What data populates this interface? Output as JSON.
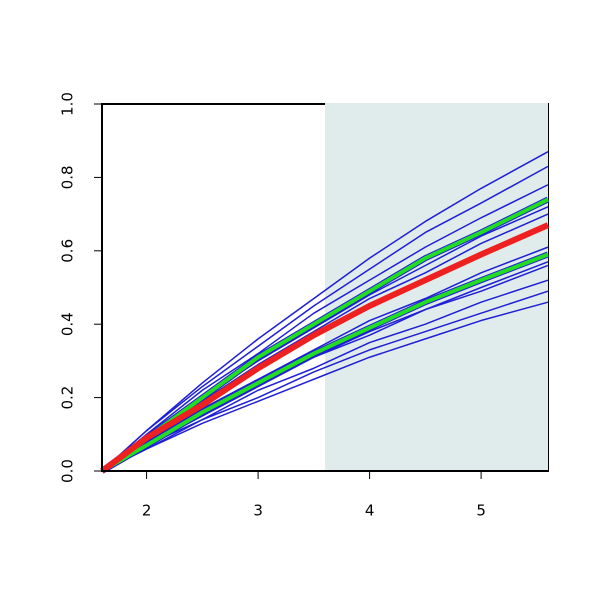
{
  "chart_data": {
    "type": "line",
    "x": [
      1.6,
      2,
      2.5,
      3,
      3.5,
      4,
      4.5,
      5,
      5.6
    ],
    "series": [
      {
        "color": "#1f1fd6",
        "linewidth": 1.5,
        "values": [
          0,
          0.11,
          0.24,
          0.36,
          0.47,
          0.58,
          0.68,
          0.77,
          0.87
        ]
      },
      {
        "color": "#1f1fd6",
        "linewidth": 1.5,
        "values": [
          0,
          0.11,
          0.23,
          0.34,
          0.45,
          0.55,
          0.65,
          0.73,
          0.83
        ]
      },
      {
        "color": "#1f1fd6",
        "linewidth": 1.5,
        "values": [
          0,
          0.1,
          0.22,
          0.32,
          0.43,
          0.52,
          0.61,
          0.69,
          0.78
        ]
      },
      {
        "color": "#1f1fd6",
        "linewidth": 1.5,
        "values": [
          0,
          0.09,
          0.2,
          0.3,
          0.39,
          0.48,
          0.56,
          0.64,
          0.72
        ]
      },
      {
        "color": "#1f1fd6",
        "linewidth": 1.5,
        "values": [
          0,
          0.09,
          0.19,
          0.29,
          0.38,
          0.47,
          0.54,
          0.62,
          0.7
        ]
      },
      {
        "color": "#1f1fd6",
        "linewidth": 1.5,
        "values": [
          0,
          0.08,
          0.17,
          0.25,
          0.33,
          0.41,
          0.47,
          0.54,
          0.61
        ]
      },
      {
        "color": "#1f1fd6",
        "linewidth": 1.5,
        "values": [
          0,
          0.07,
          0.16,
          0.24,
          0.31,
          0.38,
          0.44,
          0.5,
          0.57
        ]
      },
      {
        "color": "#1f1fd6",
        "linewidth": 1.5,
        "values": [
          0,
          0.07,
          0.15,
          0.23,
          0.31,
          0.37,
          0.44,
          0.49,
          0.56
        ]
      },
      {
        "color": "#1f1fd6",
        "linewidth": 1.5,
        "values": [
          0,
          0.07,
          0.14,
          0.22,
          0.28,
          0.35,
          0.4,
          0.46,
          0.52
        ]
      },
      {
        "color": "#1f1fd6",
        "linewidth": 1.5,
        "values": [
          0,
          0.06,
          0.14,
          0.2,
          0.27,
          0.33,
          0.38,
          0.43,
          0.49
        ]
      },
      {
        "color": "#1f1fd6",
        "linewidth": 1.5,
        "values": [
          0,
          0.06,
          0.13,
          0.19,
          0.25,
          0.31,
          0.36,
          0.41,
          0.46
        ]
      },
      {
        "color": "#1f1fd6",
        "linewidth": 6,
        "values": [
          0,
          0.07,
          0.16,
          0.24,
          0.32,
          0.39,
          0.46,
          0.52,
          0.59
        ]
      },
      {
        "color": "#1f1fd6",
        "linewidth": 6,
        "values": [
          0,
          0.09,
          0.2,
          0.31,
          0.4,
          0.49,
          0.58,
          0.65,
          0.74
        ]
      },
      {
        "color": "#22dd22",
        "linewidth": 4,
        "values": [
          0,
          0.07,
          0.16,
          0.24,
          0.32,
          0.39,
          0.46,
          0.52,
          0.59
        ]
      },
      {
        "color": "#22dd22",
        "linewidth": 4,
        "values": [
          0,
          0.09,
          0.2,
          0.31,
          0.4,
          0.49,
          0.58,
          0.65,
          0.74
        ]
      },
      {
        "color": "#ee2020",
        "linewidth": 6,
        "values": [
          0,
          0.09,
          0.18,
          0.28,
          0.37,
          0.45,
          0.52,
          0.59,
          0.67
        ]
      }
    ],
    "span": {
      "xmin": 3.6,
      "xmax": 5.6,
      "color": "#e0ecec"
    },
    "xlim": [
      1.6,
      5.6
    ],
    "xticks": [
      2,
      3,
      4,
      5
    ],
    "ylim": [
      0,
      1
    ],
    "yticks": [
      {
        "value": 0,
        "label": "0.0"
      },
      0.2,
      0.4,
      0.6,
      0.8,
      {
        "value": 1,
        "label": "1.0"
      }
    ]
  }
}
